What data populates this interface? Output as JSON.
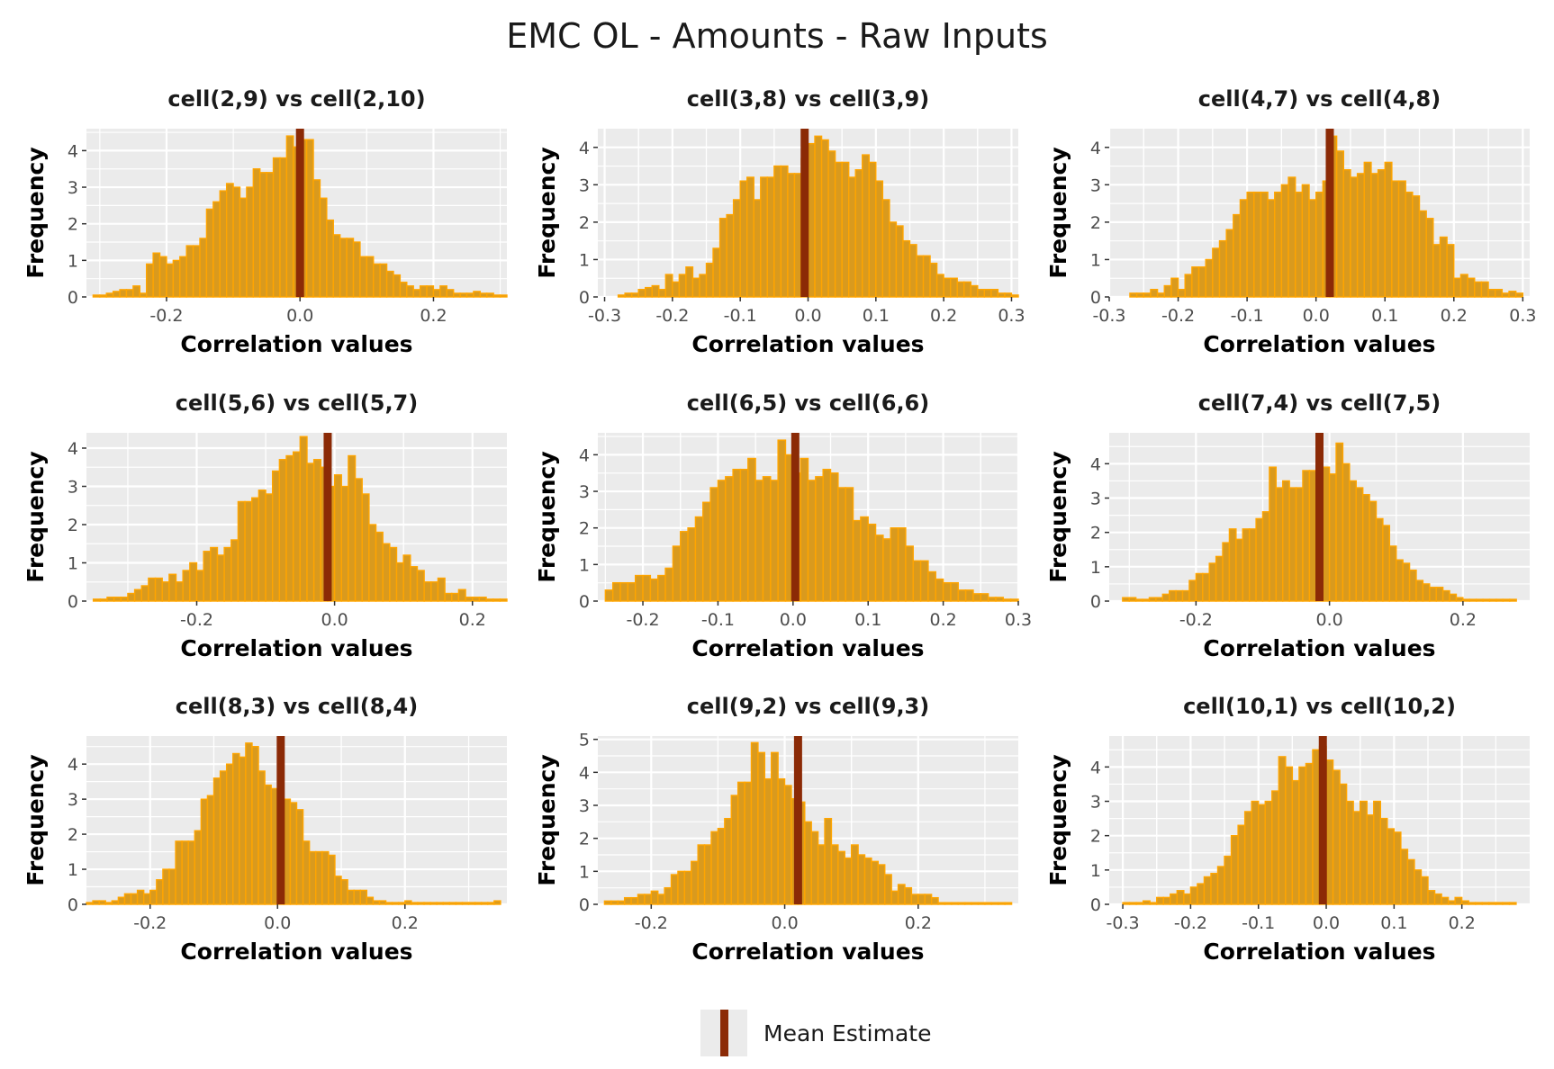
{
  "title": "EMC OL - Amounts - Raw Inputs",
  "legend": {
    "label": "Mean Estimate",
    "color": "#8b2a06"
  },
  "colors": {
    "bar_fill": "#d99a1e",
    "bar_border": "#ffa500",
    "mean_line": "#8b2a06",
    "panel_bg": "#ebebeb",
    "grid": "#ffffff"
  },
  "chart_data": [
    {
      "type": "histogram",
      "title": "cell(2,9) vs cell(2,10)",
      "xlabel": "Correlation values",
      "ylabel": "Frequency",
      "bin_start": -0.31,
      "bin_width": 0.01,
      "mean": 0.0,
      "xlim": [
        -0.32,
        0.31
      ],
      "xticks": [
        -0.2,
        0.0,
        0.2
      ],
      "xtick_labels": [
        "-0.2",
        "0.0",
        "0.2"
      ],
      "ylim": [
        0,
        4.6
      ],
      "yticks": [
        0,
        1,
        2,
        3,
        4
      ],
      "ytick_labels": [
        "0",
        "1",
        "2",
        "3",
        "4"
      ],
      "values": [
        0.05,
        0.05,
        0.1,
        0.15,
        0.2,
        0.2,
        0.3,
        0.1,
        0.9,
        1.2,
        1.1,
        0.9,
        1.0,
        1.1,
        1.4,
        1.4,
        1.6,
        2.4,
        2.6,
        2.9,
        3.1,
        3.0,
        2.7,
        3.0,
        3.5,
        3.4,
        3.4,
        3.8,
        3.8,
        4.4,
        4.1,
        4.3,
        4.3,
        3.2,
        2.7,
        2.1,
        1.7,
        1.6,
        1.6,
        1.5,
        1.1,
        1.1,
        0.9,
        0.9,
        0.7,
        0.6,
        0.4,
        0.3,
        0.2,
        0.3,
        0.3,
        0.2,
        0.3,
        0.2,
        0.1,
        0.1,
        0.1,
        0.15,
        0.1,
        0.1,
        0.05,
        0.05
      ]
    },
    {
      "type": "histogram",
      "title": "cell(3,8) vs cell(3,9)",
      "xlabel": "Correlation values",
      "ylabel": "Frequency",
      "bin_start": -0.28,
      "bin_width": 0.01,
      "mean": -0.005,
      "xlim": [
        -0.31,
        0.31
      ],
      "xticks": [
        -0.3,
        -0.2,
        -0.1,
        0.0,
        0.1,
        0.2,
        0.3
      ],
      "xtick_labels": [
        "-0.3",
        "-0.2",
        "-0.1",
        "0.0",
        "0.1",
        "0.2",
        "0.3"
      ],
      "ylim": [
        0,
        4.5
      ],
      "yticks": [
        0,
        1,
        2,
        3,
        4
      ],
      "ytick_labels": [
        "0",
        "1",
        "2",
        "3",
        "4"
      ],
      "values": [
        0.05,
        0.1,
        0.1,
        0.2,
        0.25,
        0.3,
        0.2,
        0.6,
        0.4,
        0.6,
        0.8,
        0.5,
        0.6,
        0.9,
        1.3,
        2.1,
        2.2,
        2.6,
        3.1,
        3.2,
        2.6,
        3.2,
        3.2,
        3.5,
        3.5,
        3.3,
        3.3,
        3.7,
        4.1,
        4.3,
        4.2,
        3.9,
        3.6,
        3.6,
        3.2,
        3.4,
        3.8,
        3.6,
        3.1,
        2.6,
        2.0,
        1.9,
        1.5,
        1.4,
        1.1,
        1.1,
        0.9,
        0.6,
        0.5,
        0.5,
        0.4,
        0.4,
        0.3,
        0.2,
        0.2,
        0.2,
        0.1,
        0.1,
        0.05
      ]
    },
    {
      "type": "histogram",
      "title": "cell(4,7) vs cell(4,8)",
      "xlabel": "Correlation values",
      "ylabel": "Frequency",
      "bin_start": -0.27,
      "bin_width": 0.01,
      "mean": 0.02,
      "xlim": [
        -0.3,
        0.31
      ],
      "xticks": [
        -0.3,
        -0.2,
        -0.1,
        0.0,
        0.1,
        0.2,
        0.3
      ],
      "xtick_labels": [
        "-0.3",
        "-0.2",
        "-0.1",
        "0.0",
        "0.1",
        "0.2",
        "0.3"
      ],
      "ylim": [
        0,
        4.5
      ],
      "yticks": [
        0,
        1,
        2,
        3,
        4
      ],
      "ytick_labels": [
        "0",
        "1",
        "2",
        "3",
        "4"
      ],
      "values": [
        0.1,
        0.1,
        0.1,
        0.2,
        0.1,
        0.3,
        0.5,
        0.2,
        0.6,
        0.8,
        0.8,
        1.0,
        1.3,
        1.5,
        1.8,
        2.2,
        2.6,
        2.8,
        2.8,
        2.8,
        2.6,
        2.8,
        3.0,
        3.2,
        2.8,
        3.0,
        2.6,
        2.8,
        3.1,
        4.3,
        3.9,
        3.4,
        3.2,
        3.3,
        3.6,
        3.3,
        3.4,
        3.6,
        3.1,
        3.1,
        2.8,
        2.7,
        2.3,
        2.1,
        1.4,
        1.6,
        1.4,
        0.5,
        0.6,
        0.5,
        0.4,
        0.4,
        0.2,
        0.2,
        0.1,
        0.15,
        0.1
      ]
    },
    {
      "type": "histogram",
      "title": "cell(5,6) vs cell(5,7)",
      "xlabel": "Correlation values",
      "ylabel": "Frequency",
      "bin_start": -0.35,
      "bin_width": 0.01,
      "mean": -0.01,
      "xlim": [
        -0.36,
        0.25
      ],
      "xticks": [
        -0.2,
        0.0,
        0.2
      ],
      "xtick_labels": [
        "-0.2",
        "0.0",
        "0.2"
      ],
      "ylim": [
        0,
        4.4
      ],
      "yticks": [
        0,
        1,
        2,
        3,
        4
      ],
      "ytick_labels": [
        "0",
        "1",
        "2",
        "3",
        "4"
      ],
      "values": [
        0.05,
        0.05,
        0.1,
        0.1,
        0.1,
        0.2,
        0.3,
        0.4,
        0.6,
        0.6,
        0.5,
        0.7,
        0.5,
        0.8,
        1.0,
        0.8,
        1.3,
        1.4,
        1.2,
        1.4,
        1.6,
        2.6,
        2.6,
        2.7,
        2.9,
        2.8,
        3.4,
        3.7,
        3.8,
        3.9,
        4.3,
        3.6,
        3.7,
        3.5,
        3.0,
        3.3,
        3.0,
        3.8,
        3.2,
        2.8,
        2.0,
        1.8,
        1.5,
        1.4,
        1.0,
        1.2,
        0.9,
        0.8,
        0.5,
        0.5,
        0.6,
        0.2,
        0.2,
        0.3,
        0.1,
        0.1,
        0.1,
        0.05,
        0.05,
        0.05
      ]
    },
    {
      "type": "histogram",
      "title": "cell(6,5) vs cell(6,6)",
      "xlabel": "Correlation values",
      "ylabel": "Frequency",
      "bin_start": -0.25,
      "bin_width": 0.01,
      "mean": 0.003,
      "xlim": [
        -0.26,
        0.3
      ],
      "xticks": [
        -0.2,
        -0.1,
        0.0,
        0.1,
        0.2,
        0.3
      ],
      "xtick_labels": [
        "-0.2",
        "-0.1",
        "0.0",
        "0.1",
        "0.2",
        "0.3"
      ],
      "ylim": [
        0,
        4.6
      ],
      "yticks": [
        0,
        1,
        2,
        3,
        4
      ],
      "ytick_labels": [
        "0",
        "1",
        "2",
        "3",
        "4"
      ],
      "values": [
        0.3,
        0.5,
        0.5,
        0.5,
        0.7,
        0.7,
        0.6,
        0.7,
        0.9,
        1.5,
        1.9,
        2.0,
        2.3,
        2.7,
        3.1,
        3.3,
        3.4,
        3.6,
        3.6,
        3.9,
        3.3,
        3.4,
        3.3,
        4.4,
        4.0,
        3.5,
        3.9,
        3.3,
        3.4,
        3.6,
        3.5,
        3.1,
        3.1,
        2.2,
        2.3,
        2.1,
        1.8,
        1.7,
        2.0,
        2.0,
        1.5,
        1.1,
        1.1,
        0.8,
        0.6,
        0.5,
        0.5,
        0.3,
        0.3,
        0.2,
        0.2,
        0.1,
        0.1,
        0.05,
        0.05
      ]
    },
    {
      "type": "histogram",
      "title": "cell(7,4) vs cell(7,5)",
      "xlabel": "Correlation values",
      "ylabel": "Frequency",
      "bin_start": -0.31,
      "bin_width": 0.01,
      "mean": -0.015,
      "xlim": [
        -0.33,
        0.3
      ],
      "xticks": [
        -0.2,
        0.0,
        0.2
      ],
      "xtick_labels": [
        "-0.2",
        "0.0",
        "0.2"
      ],
      "ylim": [
        0,
        4.9
      ],
      "yticks": [
        0,
        1,
        2,
        3,
        4
      ],
      "ytick_labels": [
        "0",
        "1",
        "2",
        "3",
        "4"
      ],
      "values": [
        0.1,
        0.1,
        0.05,
        0.05,
        0.1,
        0.1,
        0.2,
        0.3,
        0.3,
        0.3,
        0.6,
        0.8,
        0.8,
        1.1,
        1.3,
        1.7,
        2.1,
        1.8,
        2.1,
        2.1,
        2.4,
        2.6,
        3.9,
        3.3,
        3.5,
        3.3,
        3.3,
        3.8,
        3.8,
        4.0,
        3.9,
        3.7,
        4.6,
        4.0,
        3.5,
        3.3,
        3.1,
        2.9,
        2.4,
        2.2,
        1.6,
        1.2,
        1.1,
        0.9,
        0.6,
        0.5,
        0.4,
        0.4,
        0.3,
        0.2,
        0.1,
        0.05,
        0.05,
        0.05,
        0.05,
        0.05,
        0.05,
        0.05,
        0.05
      ]
    },
    {
      "type": "histogram",
      "title": "cell(8,3) vs cell(8,4)",
      "xlabel": "Correlation values",
      "ylabel": "Frequency",
      "bin_start": -0.3,
      "bin_width": 0.01,
      "mean": 0.005,
      "xlim": [
        -0.3,
        0.36
      ],
      "xticks": [
        -0.2,
        0.0,
        0.2
      ],
      "xtick_labels": [
        "-0.2",
        "0.0",
        "0.2"
      ],
      "ylim": [
        0,
        4.8
      ],
      "yticks": [
        0,
        1,
        2,
        3,
        4
      ],
      "ytick_labels": [
        "0",
        "1",
        "2",
        "3",
        "4"
      ],
      "values": [
        0.05,
        0.1,
        0.1,
        0.05,
        0.1,
        0.2,
        0.3,
        0.3,
        0.4,
        0.3,
        0.4,
        0.7,
        1.0,
        1.0,
        1.8,
        1.8,
        1.8,
        2.1,
        3.0,
        3.1,
        3.6,
        3.8,
        4.0,
        4.3,
        4.2,
        4.6,
        4.5,
        3.8,
        3.4,
        3.3,
        3.0,
        3.0,
        2.9,
        2.7,
        1.8,
        1.5,
        1.5,
        1.5,
        1.4,
        0.8,
        0.7,
        0.4,
        0.4,
        0.4,
        0.2,
        0.1,
        0.1,
        0.05,
        0.05,
        0.05,
        0.1,
        0.05,
        0.05,
        0.05,
        0.05,
        0.05,
        0.05,
        0.05,
        0.05,
        0.05,
        0.05,
        0.05,
        0.05,
        0.05,
        0.1
      ]
    },
    {
      "type": "histogram",
      "title": "cell(9,2) vs cell(9,3)",
      "xlabel": "Correlation values",
      "ylabel": "Frequency",
      "bin_start": -0.27,
      "bin_width": 0.01,
      "mean": 0.02,
      "xlim": [
        -0.28,
        0.35
      ],
      "xticks": [
        -0.2,
        0.0,
        0.2
      ],
      "xtick_labels": [
        "-0.2",
        "0.0",
        "0.2"
      ],
      "ylim": [
        0,
        5.1
      ],
      "yticks": [
        0,
        1,
        2,
        3,
        4,
        5
      ],
      "ytick_labels": [
        "0",
        "1",
        "2",
        "3",
        "4",
        "5"
      ],
      "values": [
        0.1,
        0.1,
        0.1,
        0.2,
        0.2,
        0.3,
        0.3,
        0.4,
        0.3,
        0.5,
        0.9,
        1.0,
        1.0,
        1.3,
        1.8,
        1.8,
        2.2,
        2.3,
        2.6,
        3.3,
        3.7,
        3.7,
        4.9,
        4.6,
        3.8,
        4.6,
        3.8,
        3.6,
        3.2,
        3.1,
        2.5,
        2.2,
        1.8,
        2.6,
        1.8,
        1.6,
        1.4,
        1.8,
        1.5,
        1.4,
        1.3,
        1.2,
        0.9,
        0.4,
        0.6,
        0.5,
        0.3,
        0.3,
        0.3,
        0.2,
        0.05,
        0.05,
        0.05,
        0.05,
        0.05,
        0.05,
        0.05,
        0.05,
        0.05,
        0.05,
        0.05
      ]
    },
    {
      "type": "histogram",
      "title": "cell(10,1) vs cell(10,2)",
      "xlabel": "Correlation values",
      "ylabel": "Frequency",
      "bin_start": -0.3,
      "bin_width": 0.01,
      "mean": -0.005,
      "xlim": [
        -0.32,
        0.3
      ],
      "xticks": [
        -0.3,
        -0.2,
        -0.1,
        0.0,
        0.1,
        0.2
      ],
      "xtick_labels": [
        "-0.3",
        "-0.2",
        "-0.1",
        "0.0",
        "0.1",
        "0.2"
      ],
      "ylim": [
        0,
        4.9
      ],
      "yticks": [
        0,
        1,
        2,
        3,
        4
      ],
      "ytick_labels": [
        "0",
        "1",
        "2",
        "3",
        "4"
      ],
      "values": [
        0.05,
        0.05,
        0.05,
        0.1,
        0.05,
        0.2,
        0.2,
        0.3,
        0.4,
        0.3,
        0.5,
        0.6,
        0.8,
        0.9,
        1.1,
        1.4,
        2.0,
        2.3,
        2.7,
        3.0,
        2.9,
        3.0,
        3.3,
        4.3,
        4.0,
        3.6,
        4.0,
        4.1,
        4.5,
        4.6,
        4.2,
        3.9,
        3.5,
        3.0,
        2.7,
        3.0,
        2.6,
        3.0,
        2.5,
        2.2,
        2.1,
        1.6,
        1.3,
        1.0,
        0.8,
        0.4,
        0.3,
        0.2,
        0.1,
        0.2,
        0.1,
        0.05,
        0.05,
        0.05,
        0.05,
        0.05,
        0.05,
        0.05
      ]
    }
  ]
}
